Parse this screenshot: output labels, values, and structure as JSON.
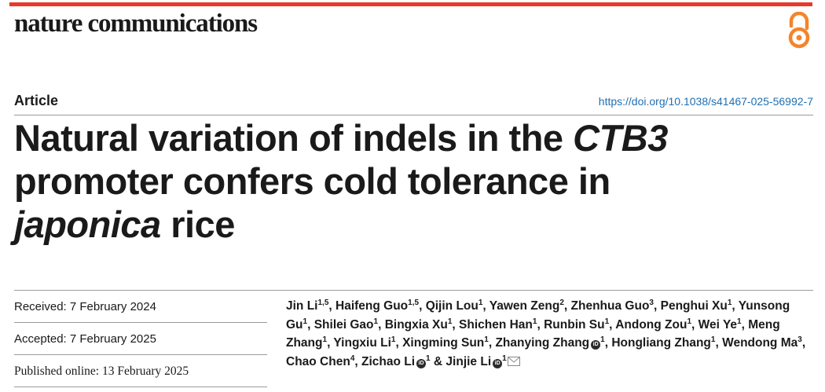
{
  "colors": {
    "brand": "#e63a2d",
    "doi": "#1f6fb2",
    "open_access": "#f5842a"
  },
  "header": {
    "journal": "nature communications",
    "open_access_icon": "open-access-icon"
  },
  "article": {
    "type": "Article",
    "doi": "https://doi.org/10.1038/s41467-025-56992-7",
    "title": {
      "p1": "Natural variation of indels in the ",
      "p2": "CTB3",
      "p3": "promoter confers cold tolerance in",
      "p4": "japonica",
      "p5": " rice"
    }
  },
  "dates": {
    "received": "Received: 7 February 2024",
    "accepted": "Accepted: 7 February 2025",
    "published": "Published online: 13 February 2025"
  },
  "authors": [
    {
      "name": "Jin Li",
      "sup": "1,5"
    },
    {
      "name": "Haifeng Guo",
      "sup": "1,5"
    },
    {
      "name": "Qijin Lou",
      "sup": "1"
    },
    {
      "name": "Yawen Zeng",
      "sup": "2"
    },
    {
      "name": "Zhenhua Guo",
      "sup": "3"
    },
    {
      "name": "Penghui Xu",
      "sup": "1"
    },
    {
      "name": "Yunsong Gu",
      "sup": "1"
    },
    {
      "name": "Shilei Gao",
      "sup": "1"
    },
    {
      "name": "Bingxia Xu",
      "sup": "1"
    },
    {
      "name": "Shichen Han",
      "sup": "1"
    },
    {
      "name": "Runbin Su",
      "sup": "1"
    },
    {
      "name": "Andong Zou",
      "sup": "1"
    },
    {
      "name": "Wei Ye",
      "sup": "1"
    },
    {
      "name": "Meng Zhang",
      "sup": "1"
    },
    {
      "name": "Yingxiu Li",
      "sup": "1"
    },
    {
      "name": "Xingming Sun",
      "sup": "1"
    },
    {
      "name": "Zhanying Zhang",
      "sup": "1"
    },
    {
      "name": "Hongliang Zhang",
      "sup": "1"
    },
    {
      "name": "Wendong Ma",
      "sup": "3"
    },
    {
      "name": "Chao Chen",
      "sup": "4"
    },
    {
      "name": "Zichao Li",
      "sup": "1"
    },
    {
      "name": "Jinjie Li",
      "sup": "1"
    }
  ],
  "author_separators": {
    "comma": ", ",
    "and": " & "
  },
  "orcid_label": "iD"
}
